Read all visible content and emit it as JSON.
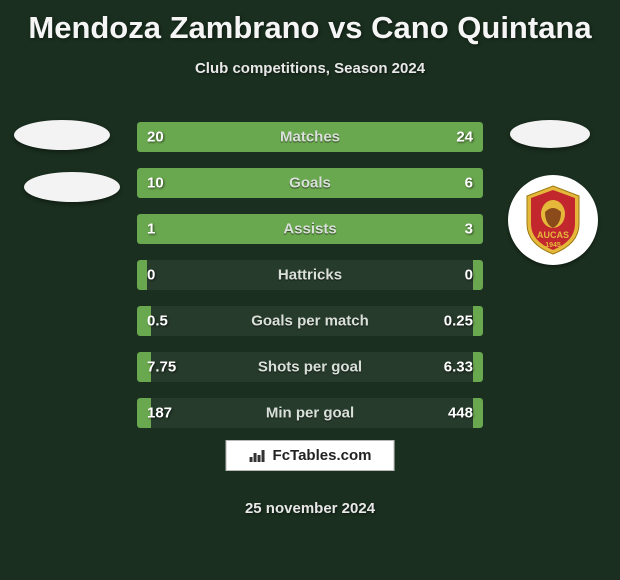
{
  "title": "Mendoza Zambrano vs Cano Quintana",
  "subtitle": "Club competitions, Season 2024",
  "footer_brand": "FcTables.com",
  "footer_date": "25 november 2024",
  "colors": {
    "background": "#1a2f1f",
    "bar_fill": "#6aa84f",
    "bar_track": "rgba(255,255,255,0.06)",
    "text_light": "#e8e8e8",
    "badge_shield": "#e6b83a",
    "badge_red": "#c1272d"
  },
  "stats": [
    {
      "label": "Matches",
      "left_val": "20",
      "right_val": "24",
      "left_pct": 40,
      "right_pct": 60
    },
    {
      "label": "Goals",
      "left_val": "10",
      "right_val": "6",
      "left_pct": 60,
      "right_pct": 40
    },
    {
      "label": "Assists",
      "left_val": "1",
      "right_val": "3",
      "left_pct": 4,
      "right_pct": 96
    },
    {
      "label": "Hattricks",
      "left_val": "0",
      "right_val": "0",
      "left_pct": 3,
      "right_pct": 3
    },
    {
      "label": "Goals per match",
      "left_val": "0.5",
      "right_val": "0.25",
      "left_pct": 4,
      "right_pct": 3
    },
    {
      "label": "Shots per goal",
      "left_val": "7.75",
      "right_val": "6.33",
      "left_pct": 4,
      "right_pct": 3
    },
    {
      "label": "Min per goal",
      "left_val": "187",
      "right_val": "448",
      "left_pct": 4,
      "right_pct": 3
    }
  ],
  "right_team": {
    "name": "AUCAS",
    "year": "1945"
  }
}
